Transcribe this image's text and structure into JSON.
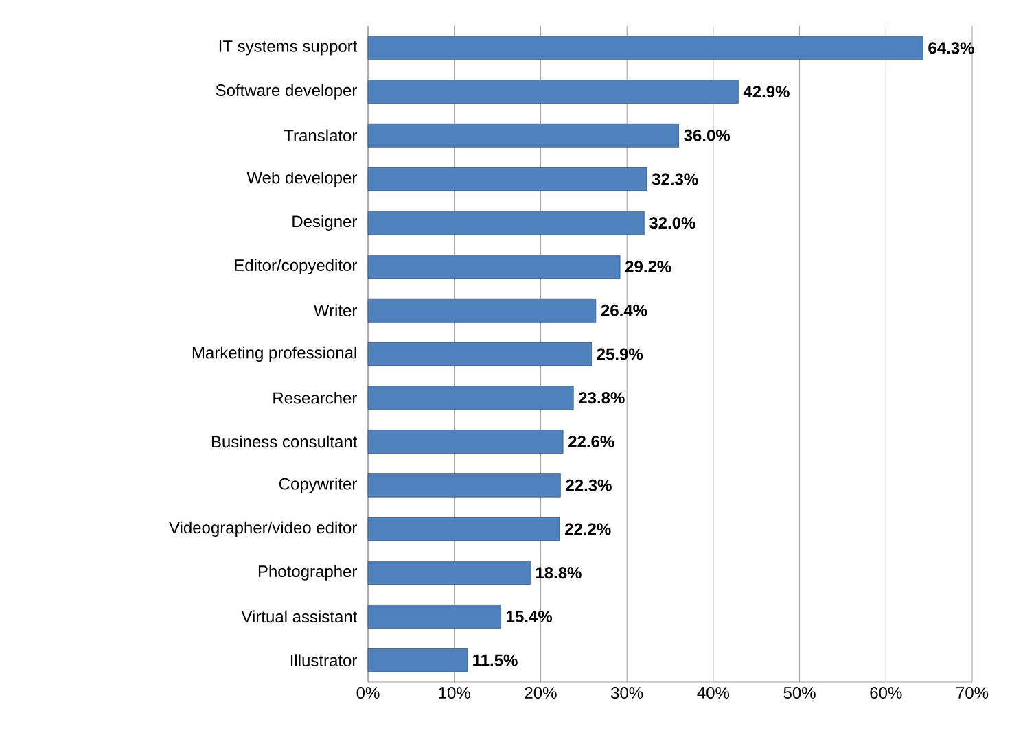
{
  "chart_data": {
    "type": "bar",
    "orientation": "horizontal",
    "categories": [
      "IT systems support",
      "Software developer",
      "Translator",
      "Web developer",
      "Designer",
      "Editor/copyeditor",
      "Writer",
      "Marketing professional",
      "Researcher",
      "Business consultant",
      "Copywriter",
      "Videographer/video editor",
      "Photographer",
      "Virtual assistant",
      "Illustrator"
    ],
    "values": [
      64.3,
      42.9,
      36.0,
      32.3,
      32.0,
      29.2,
      26.4,
      25.9,
      23.8,
      22.6,
      22.3,
      22.2,
      18.8,
      15.4,
      11.5
    ],
    "value_labels": [
      "64.3%",
      "42.9%",
      "36.0%",
      "32.3%",
      "32.0%",
      "29.2%",
      "26.4%",
      "25.9%",
      "23.8%",
      "22.6%",
      "22.3%",
      "22.2%",
      "18.8%",
      "15.4%",
      "11.5%"
    ],
    "color": "#4f81bd",
    "xlim": [
      0,
      70
    ],
    "xticks": [
      {
        "value": 0,
        "label": "0%"
      },
      {
        "value": 10,
        "label": "10%"
      },
      {
        "value": 20,
        "label": "20%"
      },
      {
        "value": 30,
        "label": "30%"
      },
      {
        "value": 40,
        "label": "40%"
      },
      {
        "value": 50,
        "label": "50%"
      },
      {
        "value": 60,
        "label": "60%"
      },
      {
        "value": 70,
        "label": "70%"
      }
    ],
    "grid": "x"
  }
}
